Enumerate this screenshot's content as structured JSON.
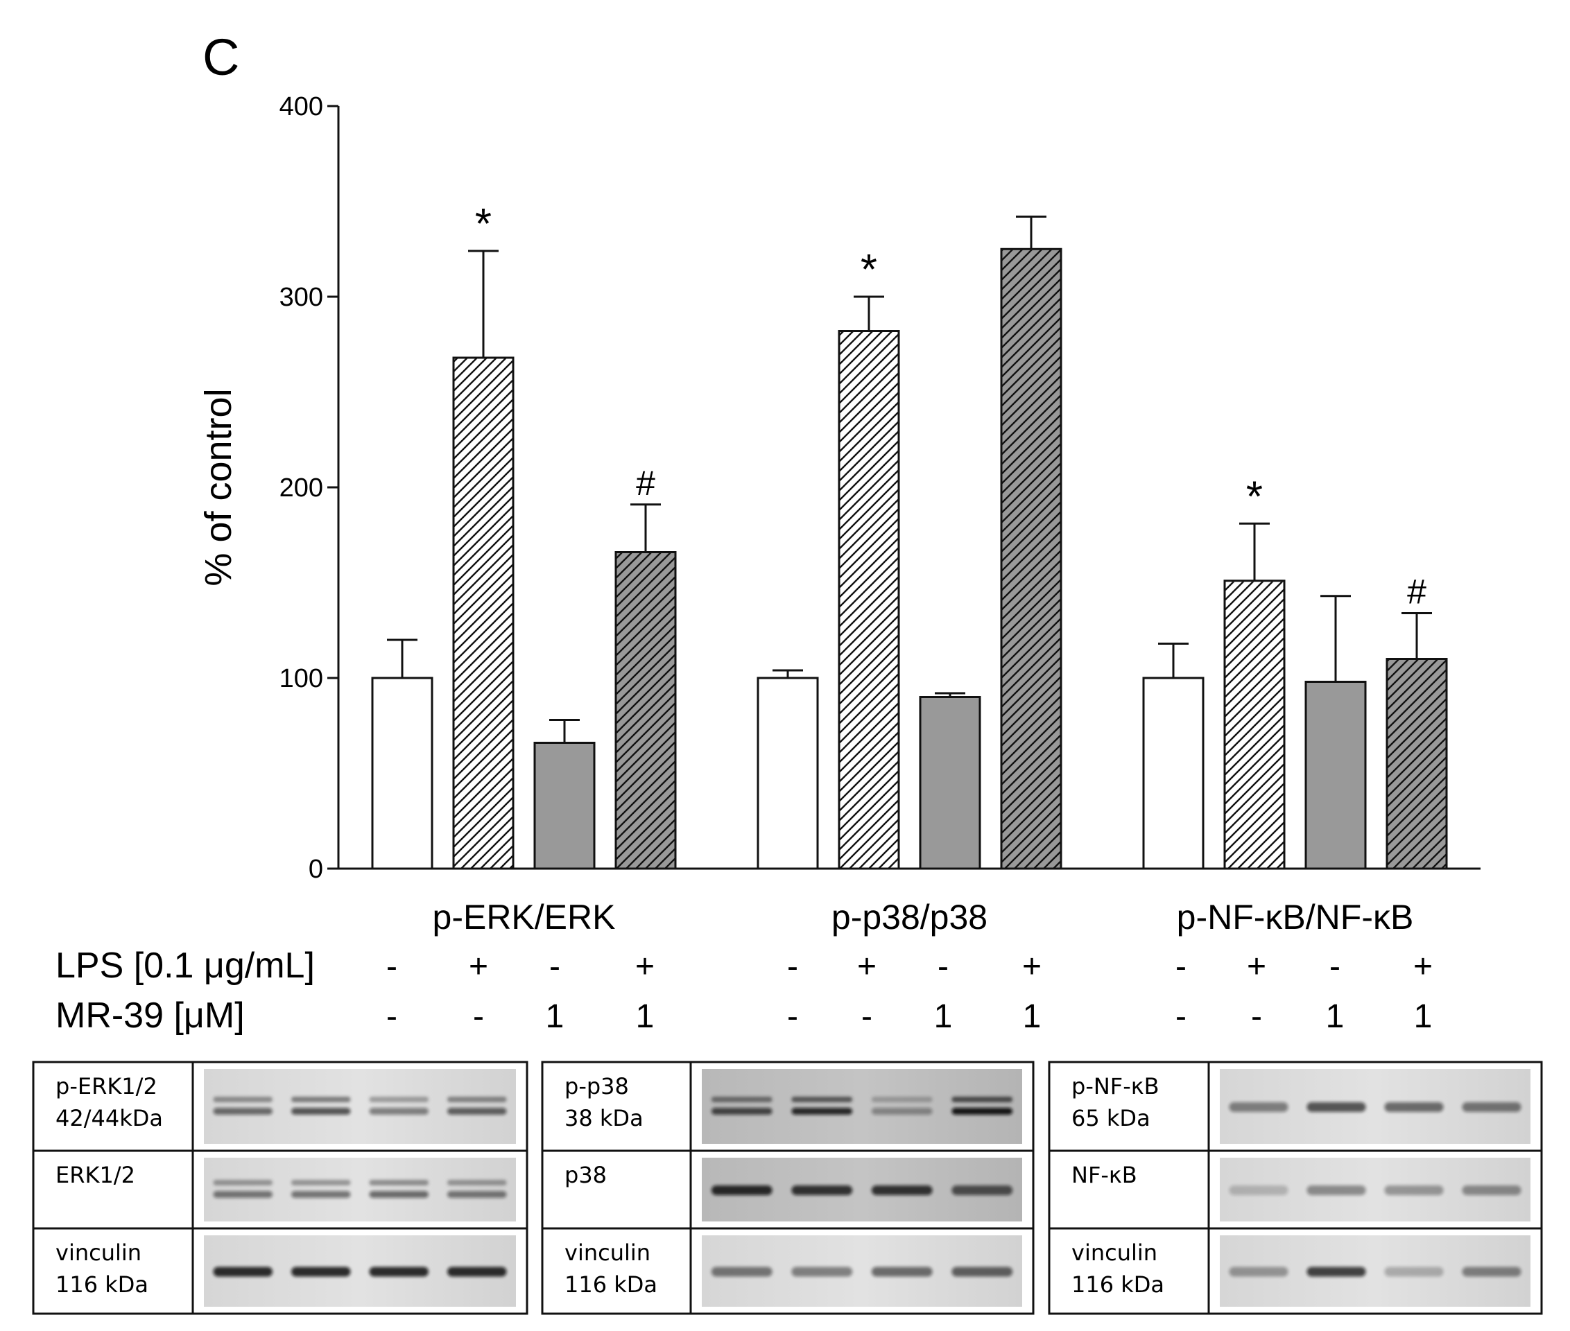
{
  "panel_label": "C",
  "chart_data": {
    "type": "bar",
    "ylabel": "% of control",
    "ylim": [
      0,
      400
    ],
    "yticks": [
      0,
      100,
      200,
      300,
      400
    ],
    "groups": [
      {
        "name": "p-ERK/ERK",
        "bars": [
          {
            "value": 100,
            "error": 20,
            "annotation": ""
          },
          {
            "value": 268,
            "error": 56,
            "annotation": "*"
          },
          {
            "value": 66,
            "error": 12,
            "annotation": ""
          },
          {
            "value": 166,
            "error": 25,
            "annotation": "#"
          }
        ]
      },
      {
        "name": "p-p38/p38",
        "bars": [
          {
            "value": 100,
            "error": 4,
            "annotation": ""
          },
          {
            "value": 282,
            "error": 18,
            "annotation": "*"
          },
          {
            "value": 90,
            "error": 2,
            "annotation": ""
          },
          {
            "value": 325,
            "error": 17,
            "annotation": ""
          }
        ]
      },
      {
        "name": "p-NF-κB/NF-κB",
        "bars": [
          {
            "value": 100,
            "error": 18,
            "annotation": ""
          },
          {
            "value": 151,
            "error": 30,
            "annotation": "*"
          },
          {
            "value": 98,
            "error": 45,
            "annotation": ""
          },
          {
            "value": 110,
            "error": 24,
            "annotation": "#"
          }
        ]
      }
    ],
    "bar_styles": [
      {
        "fill": "#ffffff",
        "hatch": false
      },
      {
        "fill": "#ffffff",
        "hatch": true
      },
      {
        "fill": "#999999",
        "hatch": false
      },
      {
        "fill": "#999999",
        "hatch": true
      }
    ],
    "treatments": [
      {
        "label": "LPS [0.1 μg/mL]",
        "values": [
          "-",
          "+",
          "-",
          "+"
        ]
      },
      {
        "label": "MR-39 [μM]",
        "values": [
          "-",
          "-",
          "1",
          "1"
        ]
      }
    ]
  },
  "blots": [
    {
      "rows": [
        {
          "name": "p-ERK1/2",
          "size": "42/44kDa"
        },
        {
          "name": "ERK1/2",
          "size": ""
        },
        {
          "name": "vinculin",
          "size": "116 kDa"
        }
      ]
    },
    {
      "rows": [
        {
          "name": "p-p38",
          "size": "38 kDa"
        },
        {
          "name": "p38",
          "size": ""
        },
        {
          "name": "vinculin",
          "size": "116 kDa"
        }
      ]
    },
    {
      "rows": [
        {
          "name": "p-NF-κB",
          "size": "65 kDa"
        },
        {
          "name": "NF-κB",
          "size": ""
        },
        {
          "name": "vinculin",
          "size": "116 kDa"
        }
      ]
    }
  ]
}
